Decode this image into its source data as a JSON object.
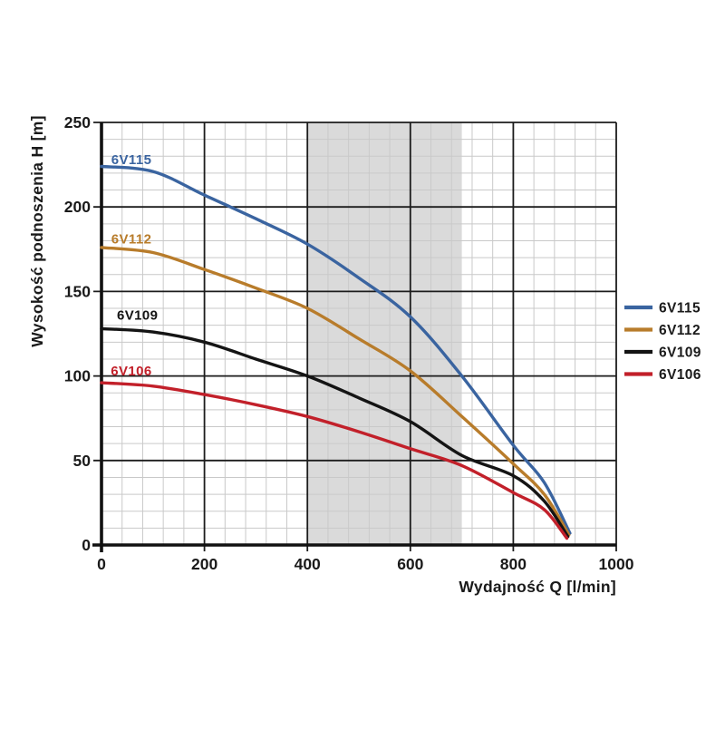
{
  "page": {
    "background": "#ffffff"
  },
  "chart_data": {
    "type": "line",
    "title": "",
    "xlabel": "Wydajność Q [l/min]",
    "ylabel": "Wysokość podnoszenia H [m]",
    "xlim": [
      0,
      1000
    ],
    "ylim": [
      0,
      250
    ],
    "x_ticks": [
      0,
      200,
      400,
      600,
      800,
      1000
    ],
    "y_ticks": [
      0,
      50,
      100,
      150,
      200,
      250
    ],
    "x_minor_step": 40,
    "y_minor_step": 10,
    "grid": "on",
    "legend_position": "right-outside",
    "shaded_band": {
      "x_from": 400,
      "x_to": 700,
      "color": "#dadada"
    },
    "series": [
      {
        "name": "6V115",
        "color": "#3a64a0",
        "label": {
          "text": "6V115",
          "x": 19,
          "y": 228
        },
        "points": [
          [
            0,
            224
          ],
          [
            100,
            221
          ],
          [
            200,
            207
          ],
          [
            300,
            193
          ],
          [
            400,
            178
          ],
          [
            500,
            158
          ],
          [
            600,
            135
          ],
          [
            700,
            100
          ],
          [
            800,
            59
          ],
          [
            860,
            37
          ],
          [
            910,
            7
          ]
        ]
      },
      {
        "name": "6V112",
        "color": "#b87c2b",
        "label": {
          "text": "6V112",
          "x": 19,
          "y": 181
        },
        "points": [
          [
            0,
            176
          ],
          [
            100,
            173
          ],
          [
            200,
            163
          ],
          [
            300,
            152
          ],
          [
            400,
            140
          ],
          [
            500,
            122
          ],
          [
            600,
            103
          ],
          [
            700,
            76
          ],
          [
            800,
            48
          ],
          [
            860,
            30
          ],
          [
            908,
            6
          ]
        ]
      },
      {
        "name": "6V109",
        "color": "#141414",
        "label": {
          "text": "6V109",
          "x": 30,
          "y": 136
        },
        "points": [
          [
            0,
            128
          ],
          [
            100,
            126
          ],
          [
            200,
            120
          ],
          [
            300,
            110
          ],
          [
            400,
            100
          ],
          [
            500,
            87
          ],
          [
            600,
            73
          ],
          [
            700,
            53
          ],
          [
            800,
            41
          ],
          [
            860,
            26
          ],
          [
            906,
            5
          ]
        ]
      },
      {
        "name": "6V106",
        "color": "#c2202a",
        "label": {
          "text": "6V106",
          "x": 18,
          "y": 103
        },
        "points": [
          [
            0,
            96
          ],
          [
            100,
            94
          ],
          [
            200,
            89
          ],
          [
            300,
            83
          ],
          [
            400,
            76
          ],
          [
            500,
            67
          ],
          [
            600,
            57
          ],
          [
            700,
            47
          ],
          [
            800,
            31
          ],
          [
            860,
            21
          ],
          [
            904,
            4
          ]
        ]
      }
    ],
    "legend": [
      "6V115",
      "6V112",
      "6V109",
      "6V106"
    ],
    "colors": {
      "major_grid": "#1c1c1c",
      "minor_grid": "#c9c9c9",
      "axis": "#111111",
      "tick_text": "#1a1a1a"
    }
  }
}
